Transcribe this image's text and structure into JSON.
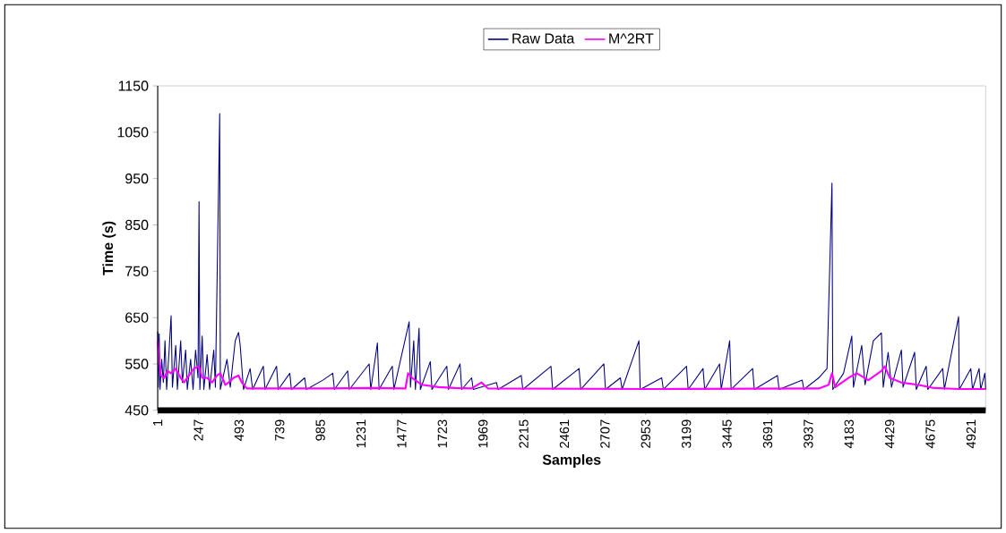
{
  "chart_data": {
    "type": "line",
    "xlabel": "Samples",
    "ylabel": "Time (s)",
    "xlim": [
      1,
      5010
    ],
    "ylim": [
      450,
      1150
    ],
    "xticks": [
      1,
      247,
      493,
      739,
      985,
      1231,
      1477,
      1723,
      1969,
      2215,
      2461,
      2707,
      2953,
      3199,
      3445,
      3691,
      3937,
      4183,
      4429,
      4675,
      4921
    ],
    "yticks": [
      450,
      550,
      650,
      750,
      850,
      950,
      1050,
      1150
    ],
    "legend": "top",
    "marker": "none",
    "series": [
      {
        "name": "Raw Data",
        "color": "#000080",
        "x": [
          1,
          5,
          10,
          15,
          25,
          35,
          45,
          55,
          70,
          82,
          90,
          110,
          120,
          140,
          150,
          170,
          180,
          200,
          215,
          230,
          245,
          251,
          256,
          270,
          280,
          300,
          315,
          340,
          350,
          376,
          380,
          420,
          440,
          470,
          490,
          500,
          520,
          560,
          575,
          640,
          650,
          720,
          730,
          800,
          810,
          890,
          900,
          1000,
          1060,
          1070,
          1150,
          1160,
          1280,
          1290,
          1330,
          1340,
          1420,
          1430,
          1522,
          1530,
          1550,
          1560,
          1582,
          1590,
          1650,
          1660,
          1750,
          1760,
          1830,
          1840,
          1900,
          1910,
          2050,
          2060,
          2200,
          2210,
          2380,
          2390,
          2550,
          2560,
          2700,
          2710,
          2800,
          2810,
          2912,
          2920,
          3050,
          3060,
          3200,
          3210,
          3300,
          3310,
          3400,
          3410,
          3461,
          3470,
          3600,
          3610,
          3750,
          3760,
          3900,
          3910,
          4000,
          4050,
          4080,
          4085,
          4150,
          4200,
          4210,
          4260,
          4280,
          4330,
          4379,
          4390,
          4420,
          4440,
          4500,
          4510,
          4580,
          4590,
          4650,
          4660,
          4750,
          4760,
          4846,
          4850,
          4920,
          4930,
          4970,
          4980,
          5005,
          5010
        ],
        "values": [
          620,
          500,
          615,
          495,
          560,
          510,
          600,
          495,
          580,
          654,
          500,
          590,
          495,
          600,
          510,
          580,
          495,
          560,
          495,
          580,
          520,
          900,
          495,
          610,
          495,
          570,
          495,
          580,
          500,
          1090,
          495,
          560,
          500,
          600,
          618,
          590,
          495,
          540,
          495,
          545,
          495,
          545,
          495,
          530,
          495,
          520,
          495,
          515,
          530,
          495,
          535,
          495,
          550,
          495,
          595,
          495,
          545,
          495,
          641,
          500,
          600,
          495,
          627,
          495,
          555,
          495,
          545,
          495,
          550,
          495,
          520,
          495,
          510,
          495,
          525,
          495,
          545,
          495,
          540,
          495,
          550,
          495,
          520,
          495,
          600,
          495,
          520,
          495,
          545,
          495,
          540,
          495,
          550,
          495,
          600,
          495,
          540,
          495,
          525,
          495,
          515,
          495,
          520,
          540,
          940,
          495,
          530,
          610,
          500,
          590,
          505,
          600,
          617,
          500,
          575,
          500,
          580,
          500,
          575,
          495,
          545,
          495,
          540,
          495,
          652,
          495,
          540,
          495,
          540,
          495,
          530,
          495
        ]
      },
      {
        "name": "M^2RT",
        "color": "#ff00ff",
        "x": [
          1,
          10,
          20,
          40,
          60,
          80,
          110,
          140,
          160,
          190,
          220,
          250,
          270,
          300,
          330,
          360,
          380,
          410,
          430,
          460,
          490,
          510,
          540,
          700,
          1000,
          1300,
          1500,
          1515,
          1540,
          1600,
          1700,
          1800,
          1900,
          1960,
          2000,
          3000,
          4000,
          4060,
          4080,
          4100,
          4180,
          4230,
          4300,
          4380,
          4400,
          4430,
          4500,
          4600,
          4700,
          4850,
          5010
        ],
        "values": [
          600,
          560,
          525,
          520,
          535,
          530,
          540,
          520,
          510,
          525,
          540,
          545,
          520,
          520,
          510,
          525,
          530,
          505,
          510,
          520,
          525,
          510,
          497,
          497,
          497,
          498,
          497,
          530,
          520,
          505,
          500,
          498,
          497,
          510,
          497,
          496,
          497,
          505,
          530,
          500,
          520,
          530,
          515,
          535,
          545,
          520,
          510,
          505,
          498,
          496,
          496
        ]
      }
    ]
  }
}
